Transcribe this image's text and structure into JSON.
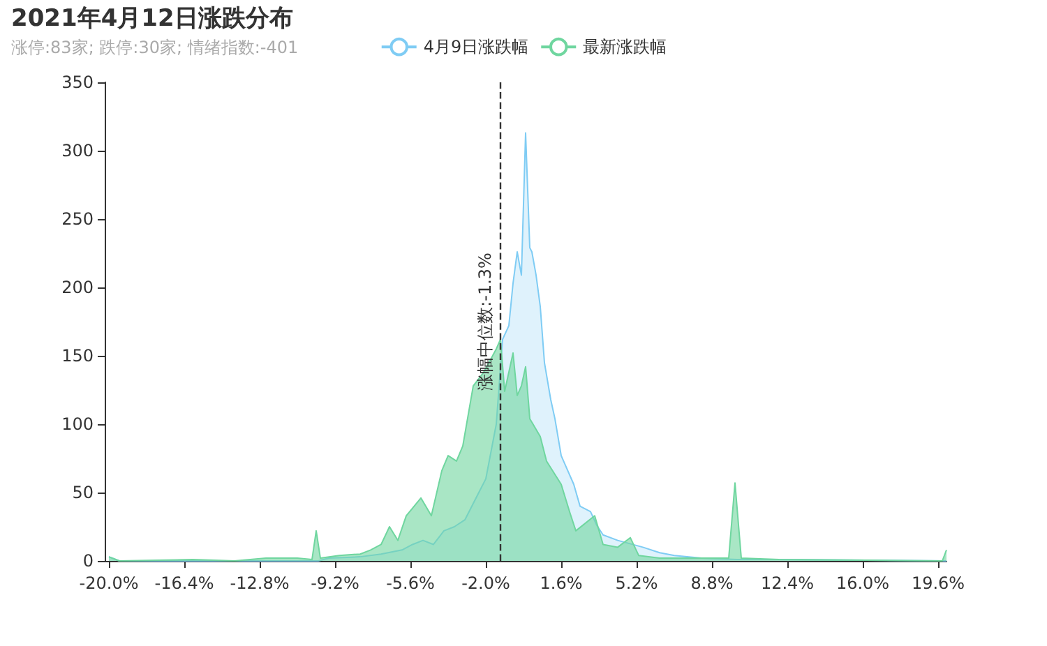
{
  "chart_data": {
    "type": "area",
    "title": "2021年4月12日涨跌分布",
    "subtitle": "涨停:83家; 跌停:30家; 情绪指数:-401",
    "series": [
      {
        "name": "4月9日涨跌幅",
        "color": "#7fccf4",
        "x": [
          -20.0,
          -19.5,
          -10,
          -9.5,
          -8,
          -7,
          -6,
          -5.5,
          -5,
          -4.5,
          -4,
          -3.5,
          -3,
          -2.5,
          -2,
          -1.5,
          -1.2,
          -0.9,
          -0.7,
          -0.5,
          -0.3,
          -0.1,
          0.1,
          0.2,
          0.4,
          0.6,
          0.8,
          1.1,
          1.3,
          1.6,
          1.8,
          2.2,
          2.5,
          3.0,
          3.3,
          3.6,
          4.3,
          5.5,
          6.3,
          7.0,
          8.3,
          10,
          12,
          20
        ],
        "values": [
          3,
          0,
          0,
          2,
          3,
          5,
          8,
          12,
          15,
          12,
          22,
          25,
          30,
          45,
          60,
          100,
          162,
          172,
          203,
          226,
          209,
          313,
          229,
          226,
          209,
          186,
          145,
          118,
          104,
          77,
          70,
          56,
          40,
          36,
          26,
          19,
          15,
          10,
          6,
          4,
          2,
          1,
          1,
          0
        ]
      },
      {
        "name": "最新涨跌幅",
        "color": "#6fd69f",
        "x": [
          -20,
          -19.5,
          -16,
          -14,
          -12.5,
          -11,
          -10.3,
          -10.1,
          -9.9,
          -9,
          -8,
          -7.5,
          -7,
          -6.6,
          -6.2,
          -5.8,
          -5.1,
          -4.6,
          -4.1,
          -3.8,
          -3.4,
          -3.1,
          -2.6,
          -2.1,
          -1.5,
          -1.3,
          -1.1,
          -0.7,
          -0.5,
          -0.3,
          -0.1,
          0.1,
          0.6,
          0.9,
          1.6,
          2.0,
          2.3,
          3.2,
          3.6,
          4.3,
          4.9,
          5.3,
          6.3,
          9.6,
          9.9,
          10.2,
          12,
          19.8,
          20
        ],
        "values": [
          3,
          0,
          1,
          0,
          2,
          2,
          1,
          22,
          2,
          4,
          5,
          8,
          12,
          25,
          15,
          33,
          46,
          33,
          66,
          77,
          73,
          84,
          128,
          138,
          155,
          162,
          124,
          152,
          121,
          128,
          142,
          104,
          91,
          73,
          56,
          36,
          22,
          33,
          12,
          10,
          17,
          4,
          2,
          2,
          57,
          2,
          1,
          0,
          8
        ]
      }
    ],
    "xlim": [
      -20.2,
      20
    ],
    "xticks": [
      {
        "value": -20,
        "label": "-20.0%"
      },
      {
        "value": -16.4,
        "label": "-16.4%"
      },
      {
        "value": -12.8,
        "label": "-12.8%"
      },
      {
        "value": -9.2,
        "label": "-9.2%"
      },
      {
        "value": -5.6,
        "label": "-5.6%"
      },
      {
        "value": -2,
        "label": "-2.0%"
      },
      {
        "value": 1.6,
        "label": "1.6%"
      },
      {
        "value": 5.2,
        "label": "5.2%"
      },
      {
        "value": 8.8,
        "label": "8.8%"
      },
      {
        "value": 12.4,
        "label": "12.4%"
      },
      {
        "value": 16,
        "label": "16.0%"
      },
      {
        "value": 19.6,
        "label": "19.6%"
      }
    ],
    "ylim": [
      0,
      350
    ],
    "yticks": [
      0,
      50,
      100,
      150,
      200,
      250,
      300,
      350
    ],
    "ref_lines": [
      {
        "axis": "x",
        "value": -1.3,
        "label": "涨幅中位数:-1.3%",
        "color": "#333333",
        "line_style": "dashed"
      }
    ],
    "grid": false,
    "legend": "top",
    "marker": "none"
  }
}
